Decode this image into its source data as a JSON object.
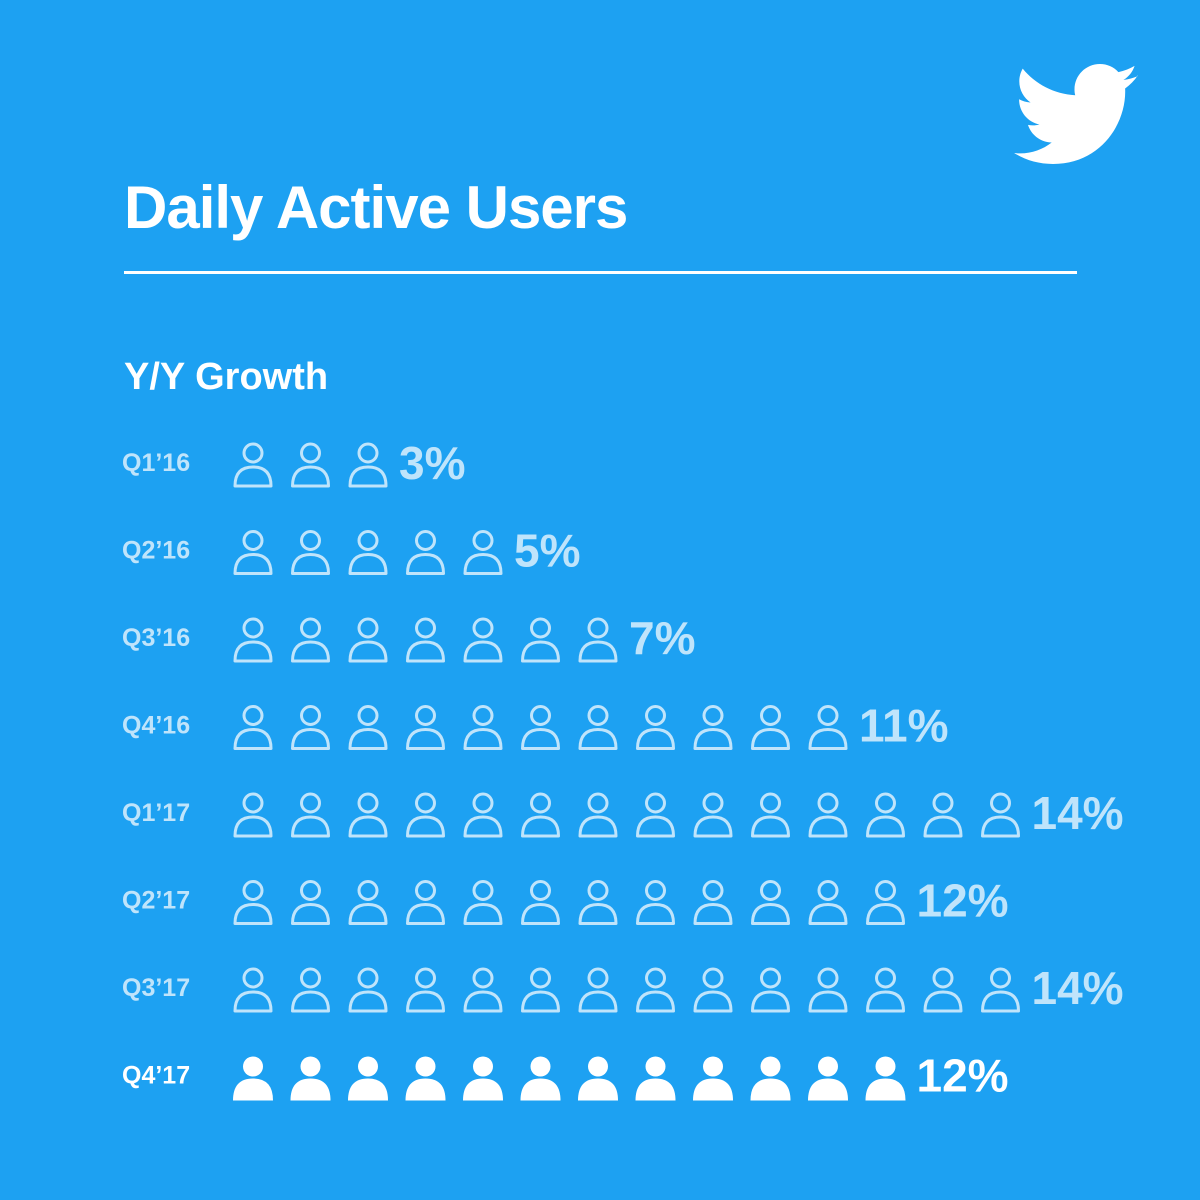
{
  "colors": {
    "background": "#1da1f2",
    "accent": "#ffffff",
    "muted": "#bfe4fb"
  },
  "brand": {
    "logo_icon": "twitter-bird-icon"
  },
  "header": {
    "title": "Daily Active Users"
  },
  "chart_data": {
    "type": "bar",
    "title": "Daily Active Users",
    "subtitle": "Y/Y Growth",
    "icon": "person-icon",
    "unit": "%",
    "categories": [
      "Q1’16",
      "Q2’16",
      "Q3’16",
      "Q4’16",
      "Q1’17",
      "Q2’17",
      "Q3’17",
      "Q4’17"
    ],
    "values": [
      3,
      5,
      7,
      11,
      14,
      12,
      14,
      12
    ],
    "value_labels": [
      "3%",
      "5%",
      "7%",
      "11%",
      "14%",
      "12%",
      "14%",
      "12%"
    ],
    "highlighted": [
      "Q4’17"
    ],
    "grid": false,
    "legend": "none"
  }
}
